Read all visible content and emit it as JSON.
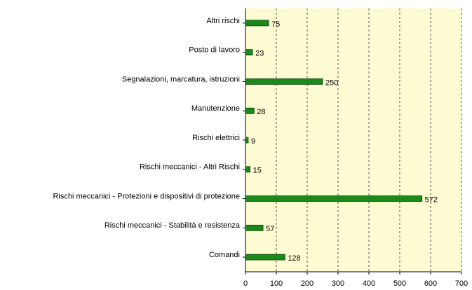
{
  "chart_data": {
    "type": "bar",
    "orientation": "horizontal",
    "categories": [
      "Altri rischi",
      "Posto di lavoro",
      "Segnalazioni, marcatura, istruzioni",
      "Manutenzione",
      "Rischi elettrici",
      "Rischi meccanici - Altri Rischi",
      "Rischi meccanici - Protezioni e dispositivi di protezione",
      "Rischi meccanici - Stabilità e resistenza",
      "Comandi"
    ],
    "values": [
      75,
      23,
      250,
      28,
      9,
      15,
      572,
      57,
      128
    ],
    "color": "#1a8a1a",
    "xlim": [
      0,
      700
    ],
    "xticks": [
      0,
      100,
      200,
      300,
      400,
      500,
      600,
      700
    ],
    "grid": true
  }
}
